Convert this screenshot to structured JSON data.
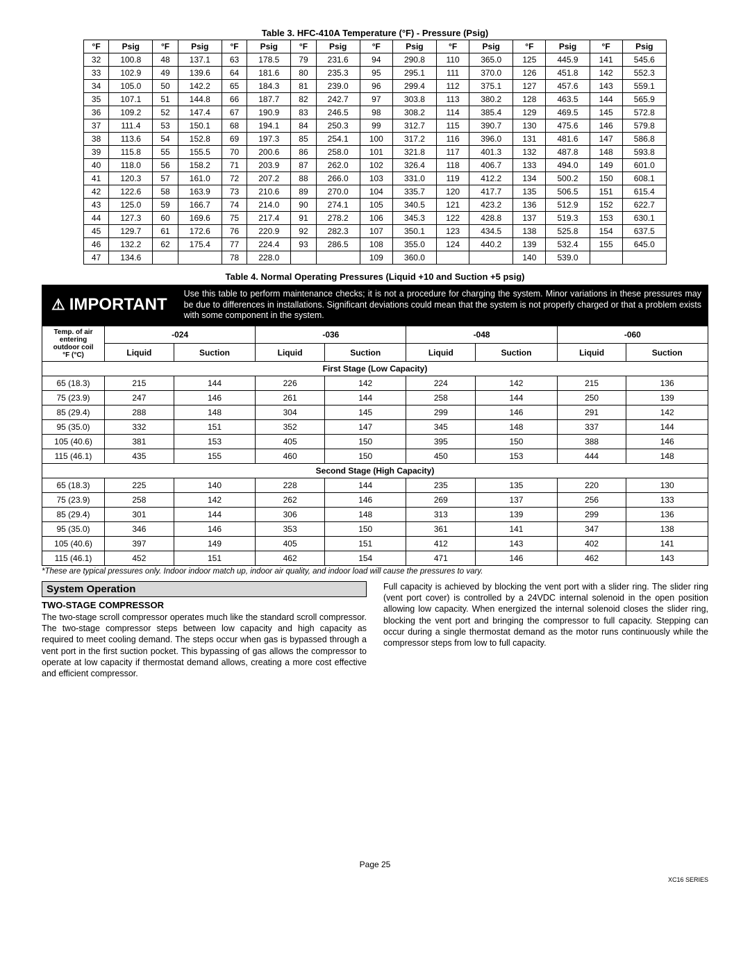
{
  "table3": {
    "title": "Table 3. HFC-410A Temperature (°F) - Pressure (Psig)",
    "header": [
      "°F",
      "Psig",
      "°F",
      "Psig",
      "°F",
      "Psig",
      "°F",
      "Psig",
      "°F",
      "Psig",
      "°F",
      "Psig",
      "°F",
      "Psig",
      "°F",
      "Psig"
    ],
    "rows": [
      [
        "32",
        "100.8",
        "48",
        "137.1",
        "63",
        "178.5",
        "79",
        "231.6",
        "94",
        "290.8",
        "110",
        "365.0",
        "125",
        "445.9",
        "141",
        "545.6"
      ],
      [
        "33",
        "102.9",
        "49",
        "139.6",
        "64",
        "181.6",
        "80",
        "235.3",
        "95",
        "295.1",
        "111",
        "370.0",
        "126",
        "451.8",
        "142",
        "552.3"
      ],
      [
        "34",
        "105.0",
        "50",
        "142.2",
        "65",
        "184.3",
        "81",
        "239.0",
        "96",
        "299.4",
        "112",
        "375.1",
        "127",
        "457.6",
        "143",
        "559.1"
      ],
      [
        "35",
        "107.1",
        "51",
        "144.8",
        "66",
        "187.7",
        "82",
        "242.7",
        "97",
        "303.8",
        "113",
        "380.2",
        "128",
        "463.5",
        "144",
        "565.9"
      ],
      [
        "36",
        "109.2",
        "52",
        "147.4",
        "67",
        "190.9",
        "83",
        "246.5",
        "98",
        "308.2",
        "114",
        "385.4",
        "129",
        "469.5",
        "145",
        "572.8"
      ],
      [
        "37",
        "111.4",
        "53",
        "150.1",
        "68",
        "194.1",
        "84",
        "250.3",
        "99",
        "312.7",
        "115",
        "390.7",
        "130",
        "475.6",
        "146",
        "579.8"
      ],
      [
        "38",
        "113.6",
        "54",
        "152.8",
        "69",
        "197.3",
        "85",
        "254.1",
        "100",
        "317.2",
        "116",
        "396.0",
        "131",
        "481.6",
        "147",
        "586.8"
      ],
      [
        "39",
        "115.8",
        "55",
        "155.5",
        "70",
        "200.6",
        "86",
        "258.0",
        "101",
        "321.8",
        "117",
        "401.3",
        "132",
        "487.8",
        "148",
        "593.8"
      ],
      [
        "40",
        "118.0",
        "56",
        "158.2",
        "71",
        "203.9",
        "87",
        "262.0",
        "102",
        "326.4",
        "118",
        "406.7",
        "133",
        "494.0",
        "149",
        "601.0"
      ],
      [
        "41",
        "120.3",
        "57",
        "161.0",
        "72",
        "207.2",
        "88",
        "266.0",
        "103",
        "331.0",
        "119",
        "412.2",
        "134",
        "500.2",
        "150",
        "608.1"
      ],
      [
        "42",
        "122.6",
        "58",
        "163.9",
        "73",
        "210.6",
        "89",
        "270.0",
        "104",
        "335.7",
        "120",
        "417.7",
        "135",
        "506.5",
        "151",
        "615.4"
      ],
      [
        "43",
        "125.0",
        "59",
        "166.7",
        "74",
        "214.0",
        "90",
        "274.1",
        "105",
        "340.5",
        "121",
        "423.2",
        "136",
        "512.9",
        "152",
        "622.7"
      ],
      [
        "44",
        "127.3",
        "60",
        "169.6",
        "75",
        "217.4",
        "91",
        "278.2",
        "106",
        "345.3",
        "122",
        "428.8",
        "137",
        "519.3",
        "153",
        "630.1"
      ],
      [
        "45",
        "129.7",
        "61",
        "172.6",
        "76",
        "220.9",
        "92",
        "282.3",
        "107",
        "350.1",
        "123",
        "434.5",
        "138",
        "525.8",
        "154",
        "637.5"
      ],
      [
        "46",
        "132.2",
        "62",
        "175.4",
        "77",
        "224.4",
        "93",
        "286.5",
        "108",
        "355.0",
        "124",
        "440.2",
        "139",
        "532.4",
        "155",
        "645.0"
      ],
      [
        "47",
        "134.6",
        "",
        "",
        "78",
        "228.0",
        "",
        "",
        "109",
        "360.0",
        "",
        "",
        "140",
        "539.0",
        "",
        ""
      ]
    ]
  },
  "table4": {
    "title": "Table 4. Normal Operating Pressures (Liquid +10 and Suction +5 psig)",
    "important_label": "IMPORTANT",
    "important_text": "Use this table to perform maintenance checks; it is not a procedure for charging the system. Minor variations in these pressures may be due to differences in installations. Significant deviations could mean that the system is not properly charged or that a problem exists with some component in the system.",
    "temp_header1": "Temp. of air entering",
    "temp_header2": "°F (°C)",
    "outdoor_coil": "outdoor coil",
    "models": [
      "-024",
      "-036",
      "-048",
      "-060"
    ],
    "subcols": [
      "Liquid",
      "Suction"
    ],
    "section1": "First Stage (Low Capacity)",
    "section2": "Second Stage (High Capacity)",
    "rows1": [
      [
        "65 (18.3)",
        "215",
        "144",
        "226",
        "142",
        "224",
        "142",
        "215",
        "136"
      ],
      [
        "75 (23.9)",
        "247",
        "146",
        "261",
        "144",
        "258",
        "144",
        "250",
        "139"
      ],
      [
        "85 (29.4)",
        "288",
        "148",
        "304",
        "145",
        "299",
        "146",
        "291",
        "142"
      ],
      [
        "95 (35.0)",
        "332",
        "151",
        "352",
        "147",
        "345",
        "148",
        "337",
        "144"
      ],
      [
        "105 (40.6)",
        "381",
        "153",
        "405",
        "150",
        "395",
        "150",
        "388",
        "146"
      ],
      [
        "115 (46.1)",
        "435",
        "155",
        "460",
        "150",
        "450",
        "153",
        "444",
        "148"
      ]
    ],
    "rows2": [
      [
        "65 (18.3)",
        "225",
        "140",
        "228",
        "144",
        "235",
        "135",
        "220",
        "130"
      ],
      [
        "75 (23.9)",
        "258",
        "142",
        "262",
        "146",
        "269",
        "137",
        "256",
        "133"
      ],
      [
        "85 (29.4)",
        "301",
        "144",
        "306",
        "148",
        "313",
        "139",
        "299",
        "136"
      ],
      [
        "95 (35.0)",
        "346",
        "146",
        "353",
        "150",
        "361",
        "141",
        "347",
        "138"
      ],
      [
        "105 (40.6)",
        "397",
        "149",
        "405",
        "151",
        "412",
        "143",
        "402",
        "141"
      ],
      [
        "115 (46.1)",
        "452",
        "151",
        "462",
        "154",
        "471",
        "146",
        "462",
        "143"
      ]
    ],
    "footnote": "*These are typical pressures only. Indoor indoor match up, indoor air quality, and indoor load will cause the pressures to vary."
  },
  "system_operation": {
    "heading": "System Operation",
    "sub": "TWO-STAGE COMPRESSOR",
    "para1": "The two-stage scroll compressor operates much like the standard scroll compressor. The two-stage compressor steps between low capacity and high capacity as required to meet cooling demand. The steps occur when gas is bypassed through a vent port in the first suction pocket. This bypassing of gas allows the compressor to operate at low capacity if thermostat demand allows, creating a more cost effective and efficient compressor.",
    "para2": "Full capacity is achieved by blocking the vent port with a slider ring. The slider ring (vent port cover) is controlled by a 24VDC internal solenoid in the open position allowing low capacity. When energized the internal solenoid closes the slider ring, blocking the vent port and bringing the compressor to full capacity. Stepping can occur during a single thermostat demand as the motor runs continuously while the compressor steps from low to full capacity."
  },
  "footer": {
    "page": "Page 25",
    "series": "XC16 SERIES"
  }
}
